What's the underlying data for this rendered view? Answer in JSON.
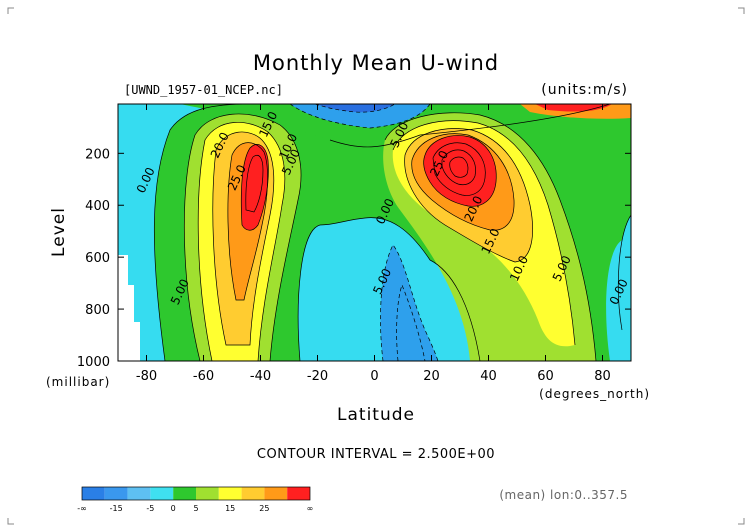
{
  "chart_data": {
    "type": "heatmap",
    "title": "Monthly Mean U-wind",
    "file_label": "[UWND_1957-01_NCEP.nc]",
    "units_label": "(units:m/s)",
    "ylabel": "Level",
    "yunit": "(millibar)",
    "xlabel": "Latitude",
    "xunit": "(degrees_north)",
    "xlim": [
      -90,
      90
    ],
    "ylim": [
      1000,
      10
    ],
    "xticks": [
      -80,
      -60,
      -40,
      -20,
      0,
      20,
      40,
      60,
      80
    ],
    "yticks": [
      1000,
      800,
      600,
      400,
      200
    ],
    "contour_interval_text": "CONTOUR INTERVAL = 2.500E+00",
    "footer_text": "(mean) lon:0..357.5",
    "contour_labels": [
      {
        "text": "15.0",
        "x": -36,
        "y": 95
      },
      {
        "text": "20.0",
        "x": -53,
        "y": 175
      },
      {
        "text": "25.0",
        "x": -47,
        "y": 300
      },
      {
        "text": "10.0",
        "x": -29,
        "y": 180
      },
      {
        "text": "5.00",
        "x": -28,
        "y": 240
      },
      {
        "text": "0.00",
        "x": -79,
        "y": 310
      },
      {
        "text": "5.00",
        "x": -67,
        "y": 740
      },
      {
        "text": "0.00",
        "x": 5,
        "y": 430
      },
      {
        "text": "5.00",
        "x": 4,
        "y": 700
      },
      {
        "text": "5.00",
        "x": 10,
        "y": 135
      },
      {
        "text": "25.0",
        "x": 24,
        "y": 245
      },
      {
        "text": "20.0",
        "x": 36,
        "y": 420
      },
      {
        "text": "15.0",
        "x": 42,
        "y": 545
      },
      {
        "text": "10.0",
        "x": 52,
        "y": 650
      },
      {
        "text": "5.00",
        "x": 67,
        "y": 650
      },
      {
        "text": "0.00",
        "x": 87,
        "y": 740
      }
    ],
    "colorbar": {
      "levels_text": [
        "-∞",
        "-15",
        "-5",
        "0",
        "5",
        "15",
        "25",
        "∞"
      ],
      "colors": [
        "#2a7fe6",
        "#3a98ee",
        "#5ec0f2",
        "#3fe0f0",
        "#2ec82e",
        "#a0e030",
        "#ffff30",
        "#ffcc30",
        "#ff9a18",
        "#ff2020"
      ]
    }
  }
}
